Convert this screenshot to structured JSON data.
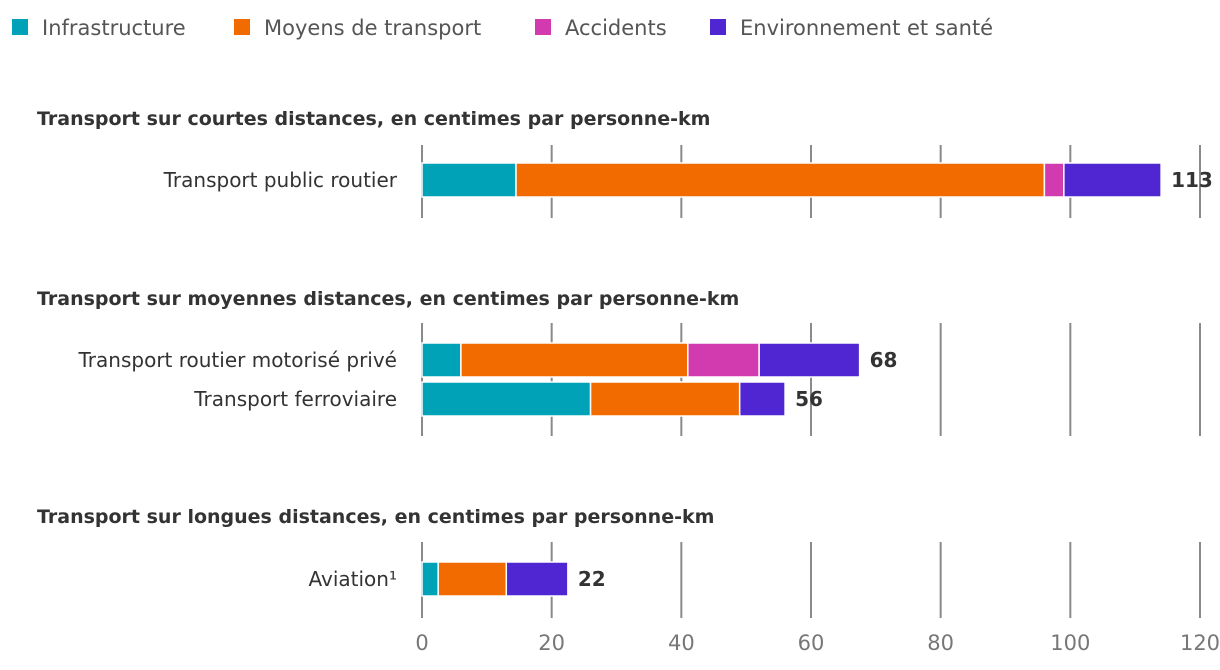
{
  "chart_data": {
    "type": "bar",
    "orientation": "horizontal",
    "stacked": true,
    "legend_position": "top-left",
    "series": [
      {
        "name": "Infrastructure",
        "color": "#00a2b8"
      },
      {
        "name": "Moyens de transport",
        "color": "#f26b00"
      },
      {
        "name": "Accidents",
        "color": "#d23ab0"
      },
      {
        "name": "Environnement et santé",
        "color": "#5026d2"
      }
    ],
    "x_ticks": [
      "0",
      "20",
      "40",
      "60",
      "80",
      "100",
      "120"
    ],
    "xlim": [
      0,
      120
    ],
    "grid": true,
    "panels": [
      {
        "title": "Transport sur courtes distances, en centimes par personne-km",
        "categories": [
          "Transport public routier"
        ],
        "values": [
          [
            14.5,
            81.5,
            3,
            15
          ]
        ],
        "totals": [
          "113"
        ]
      },
      {
        "title": "Transport sur moyennes distances, en centimes par personne-km",
        "categories": [
          "Transport routier motorisé privé",
          "Transport ferroviaire"
        ],
        "values": [
          [
            6,
            35,
            11,
            15.5
          ],
          [
            26,
            23,
            0,
            7
          ]
        ],
        "totals": [
          "68",
          "56"
        ]
      },
      {
        "title": "Transport sur longues distances, en centimes par personne-km",
        "categories": [
          "Aviation¹"
        ],
        "values": [
          [
            2.5,
            10.5,
            0,
            9.5
          ]
        ],
        "totals": [
          "22"
        ]
      }
    ]
  }
}
